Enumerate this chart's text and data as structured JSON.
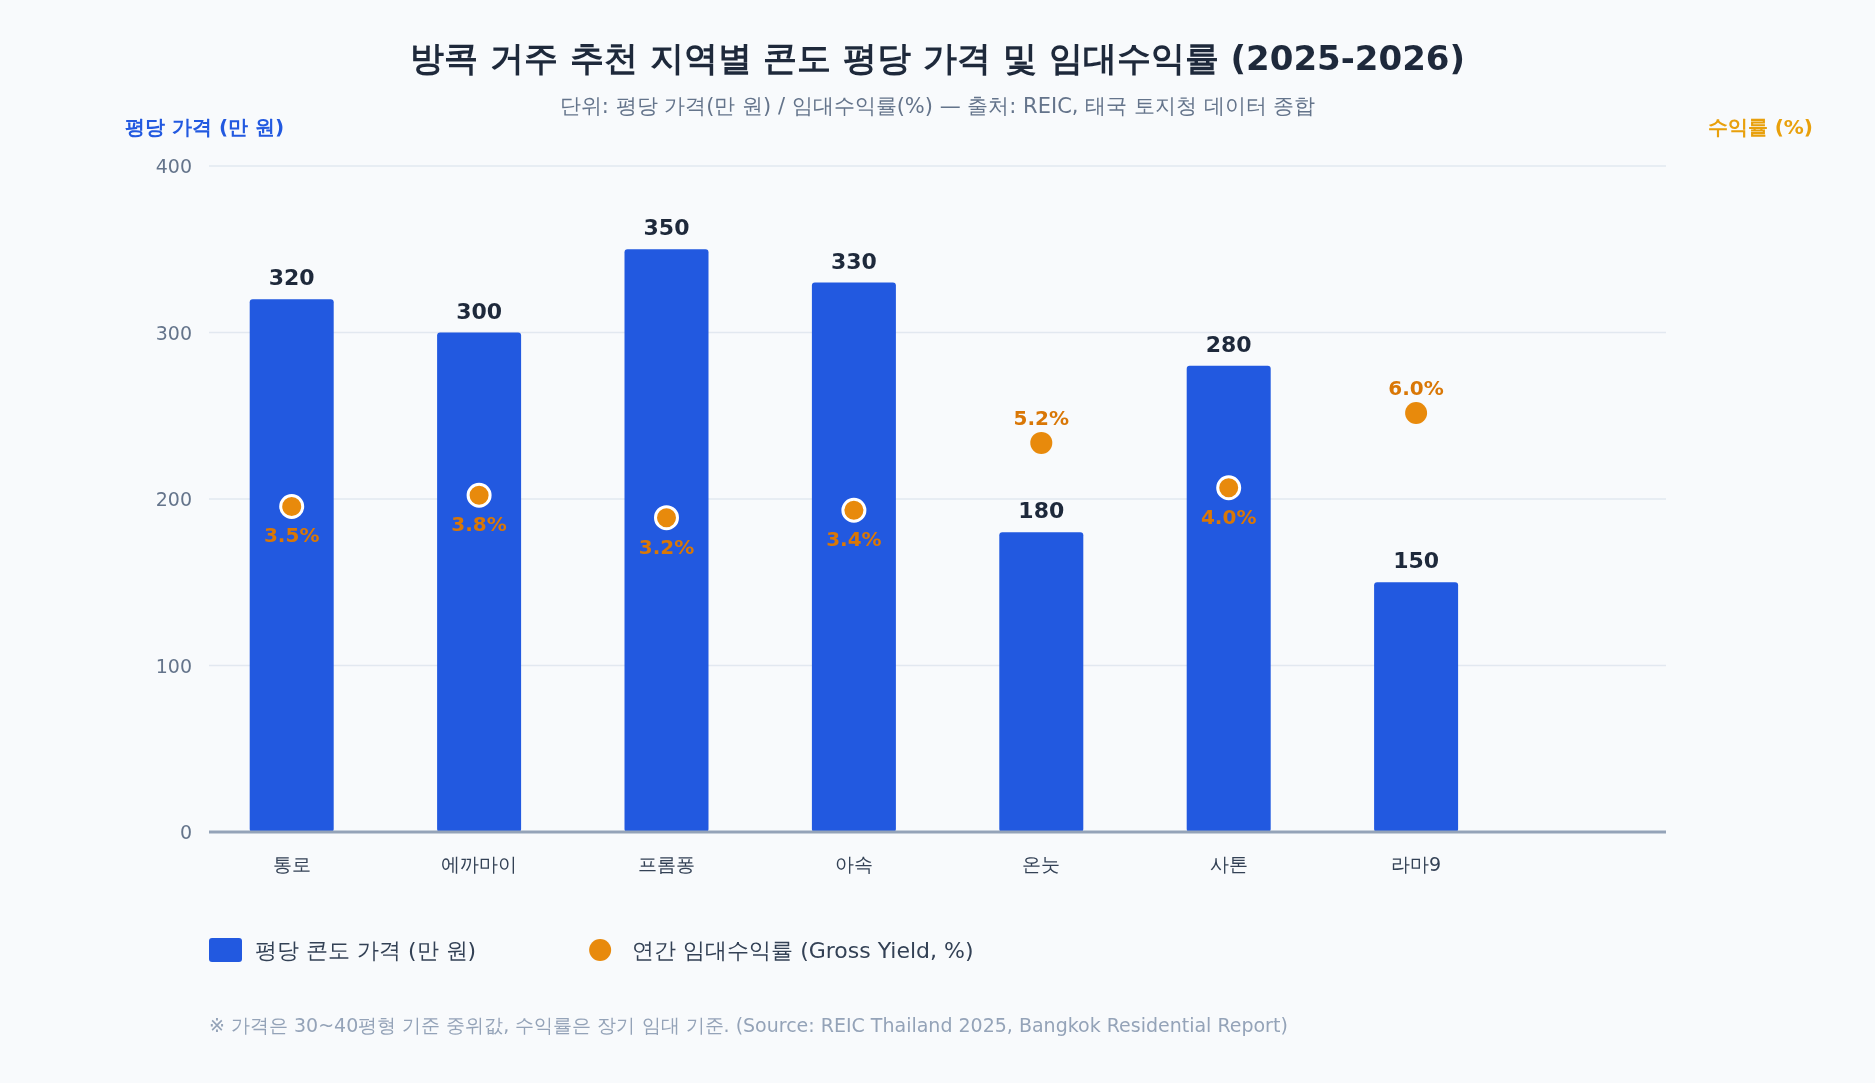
{
  "chart_data": {
    "type": "bar",
    "title": "방콕 거주 추천 지역별 콘도 평당 가격 및 임대수익률 (2025-2026)",
    "subtitle": "단위: 평당 가격(만 원) / 임대수익률(%) — 출처: REIC, 태국 토지청 데이터 종합",
    "categories": [
      "통로",
      "에까마이",
      "프롬퐁",
      "아속",
      "온눗",
      "사톤",
      "라마9"
    ],
    "ylabel": "평당 가격 (만 원)",
    "y2label": "수익률 (%)",
    "ylim": [
      0,
      400
    ],
    "yticks": [
      0,
      100,
      200,
      300,
      400
    ],
    "y2lim": [
      -5.2,
      12.6
    ],
    "grid": "y",
    "legend": "bottom",
    "series": [
      {
        "name": "평당 콘도 가격 (만 원)",
        "type": "bar",
        "color": "#2259e0",
        "values": [
          320,
          300,
          350,
          330,
          180,
          280,
          150
        ],
        "value_labels": [
          "320",
          "300",
          "350",
          "330",
          "180",
          "280",
          "150"
        ]
      },
      {
        "name": "연간 임대수익률 (Gross Yield, %)",
        "type": "scatter",
        "axis": "y2",
        "marker": "circle",
        "color": "#e88a0c",
        "values": [
          3.5,
          3.8,
          3.2,
          3.4,
          5.2,
          4.0,
          6.0
        ],
        "value_labels": [
          "3.5%",
          "3.8%",
          "3.2%",
          "3.4%",
          "5.2%",
          "4.0%",
          "6.0%"
        ]
      }
    ],
    "annotations": [
      "※ 가격은 30~40평형 기준 중위값, 수익률은 장기 임대 기준. (Source: REIC Thailand 2025, Bangkok Residential Report)"
    ]
  }
}
